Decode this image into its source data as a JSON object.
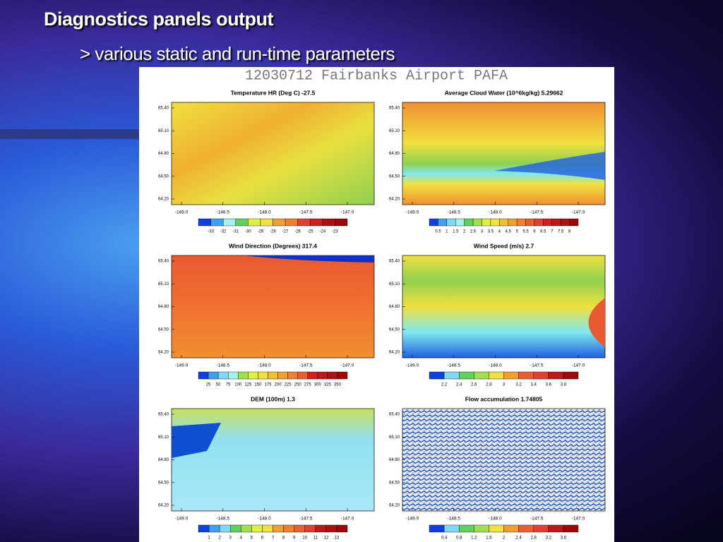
{
  "slide": {
    "title": "Diagnostics panels output",
    "subtitle": "> various static and run-time parameters"
  },
  "figure": {
    "title": "12030712 Fairbanks Airport PAFA",
    "yticks": [
      "65.40",
      "65.10",
      "64.80",
      "64.50",
      "64.20"
    ],
    "xticks": [
      "-149.0",
      "-148.5",
      "-148.0",
      "-147.5",
      "-147.0"
    ],
    "panels": [
      {
        "title": "Temperature HR (Deg C) -27.5",
        "colorbar": [
          "-33",
          "-32",
          "-31",
          "-30",
          "-29",
          "-28",
          "-27",
          "-26",
          "-25",
          "-24",
          "-23"
        ]
      },
      {
        "title": "Average Cloud Water (10^6kg/kg) 5.29662",
        "colorbar": [
          "0.5",
          "1",
          "1.5",
          "2",
          "2.5",
          "3",
          "3.5",
          "4",
          "4.5",
          "5",
          "5.5",
          "6",
          "6.5",
          "7",
          "7.5",
          "8"
        ]
      },
      {
        "title": "Wind Direction (Degrees) 317.4",
        "colorbar": [
          "25",
          "50",
          "75",
          "100",
          "125",
          "150",
          "175",
          "200",
          "225",
          "250",
          "275",
          "300",
          "325",
          "350"
        ]
      },
      {
        "title": "Wind Speed (m/s) 2.7",
        "colorbar": [
          "2.2",
          "2.4",
          "2.6",
          "2.8",
          "3",
          "3.2",
          "3.4",
          "3.6",
          "3.8"
        ]
      },
      {
        "title": "DEM (100m) 1.3",
        "colorbar": [
          "1",
          "2",
          "3",
          "4",
          "5",
          "6",
          "7",
          "8",
          "9",
          "10",
          "11",
          "12",
          "13"
        ]
      },
      {
        "title": "Flow accumulation 1.74805",
        "colorbar": [
          "0.4",
          "0.8",
          "1.2",
          "1.6",
          "2",
          "2.4",
          "2.8",
          "3.2",
          "3.6"
        ]
      }
    ]
  }
}
